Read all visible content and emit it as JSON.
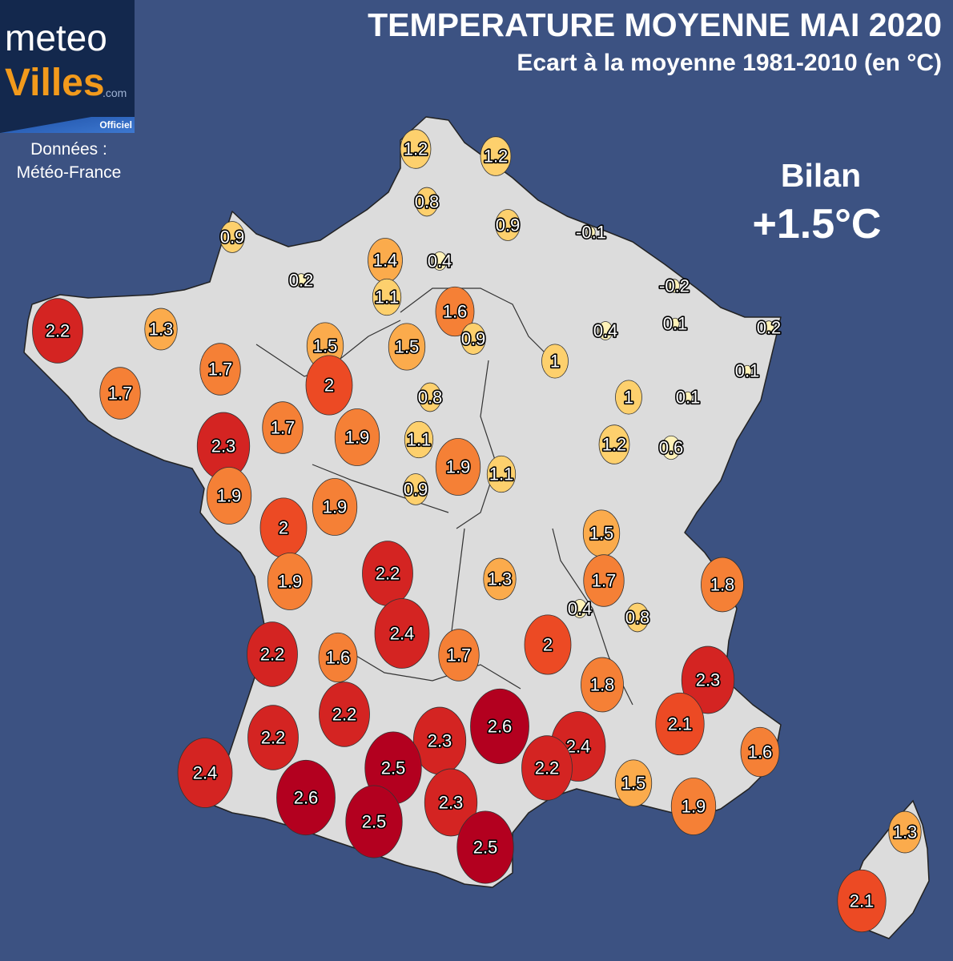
{
  "header": {
    "title": "TEMPERATURE MOYENNE MAI 2020",
    "subtitle": "Ecart à la moyenne 1981-2010 (en °C)"
  },
  "logo": {
    "line1": "meteo",
    "line2": "Villes",
    "suffix": ".com",
    "badge": "Officiel"
  },
  "source": {
    "line1": "Données :",
    "line2": "Météo-France"
  },
  "summary": {
    "label": "Bilan",
    "value": "+1.5°C"
  },
  "colors": {
    "background": "#3c5282",
    "land": "#dcdcdc",
    "scale": [
      "#fff2b8",
      "#fdd06d",
      "#fbab4c",
      "#f58036",
      "#ec4a24",
      "#d42422",
      "#b3001f"
    ]
  },
  "anomalies": [
    {
      "v": "1.2"
    },
    {
      "v": "1.2"
    },
    {
      "v": "0.8"
    },
    {
      "v": "0.9"
    },
    {
      "v": "-0.1"
    },
    {
      "v": "0.9"
    },
    {
      "v": "1.4"
    },
    {
      "v": "0.4"
    },
    {
      "v": "0.2"
    },
    {
      "v": "1.1"
    },
    {
      "v": "-0.2"
    },
    {
      "v": "1.6"
    },
    {
      "v": "2.2"
    },
    {
      "v": "1.3"
    },
    {
      "v": "0.4"
    },
    {
      "v": "0.1"
    },
    {
      "v": "0.2"
    },
    {
      "v": "1.5"
    },
    {
      "v": "0.9"
    },
    {
      "v": "1.5"
    },
    {
      "v": "1"
    },
    {
      "v": "1.7"
    },
    {
      "v": "0.1"
    },
    {
      "v": "2"
    },
    {
      "v": "1.7"
    },
    {
      "v": "0.8"
    },
    {
      "v": "1"
    },
    {
      "v": "0.1"
    },
    {
      "v": "1.7"
    },
    {
      "v": "2.3"
    },
    {
      "v": "1.9"
    },
    {
      "v": "1.1"
    },
    {
      "v": "1.2"
    },
    {
      "v": "0.6"
    },
    {
      "v": "1.9"
    },
    {
      "v": "1.1"
    },
    {
      "v": "0.9"
    },
    {
      "v": "1.9"
    },
    {
      "v": "1.9"
    },
    {
      "v": "2"
    },
    {
      "v": "1.5"
    },
    {
      "v": "2.2"
    },
    {
      "v": "1.3"
    },
    {
      "v": "1.7"
    },
    {
      "v": "1.8"
    },
    {
      "v": "1.9"
    },
    {
      "v": "0.4"
    },
    {
      "v": "0.8"
    },
    {
      "v": "2.4"
    },
    {
      "v": "2.2"
    },
    {
      "v": "1.6"
    },
    {
      "v": "1.7"
    },
    {
      "v": "2"
    },
    {
      "v": "1.8"
    },
    {
      "v": "2.3"
    },
    {
      "v": "2.2"
    },
    {
      "v": "2.6"
    },
    {
      "v": "2.2"
    },
    {
      "v": "2.3"
    },
    {
      "v": "2.1"
    },
    {
      "v": "2.4"
    },
    {
      "v": "2.4"
    },
    {
      "v": "2.5"
    },
    {
      "v": "2.2"
    },
    {
      "v": "1.6"
    },
    {
      "v": "2.6"
    },
    {
      "v": "1.5"
    },
    {
      "v": "2.3"
    },
    {
      "v": "1.9"
    },
    {
      "v": "2.5"
    },
    {
      "v": "2.5"
    },
    {
      "v": "1.3"
    },
    {
      "v": "2.1"
    }
  ]
}
